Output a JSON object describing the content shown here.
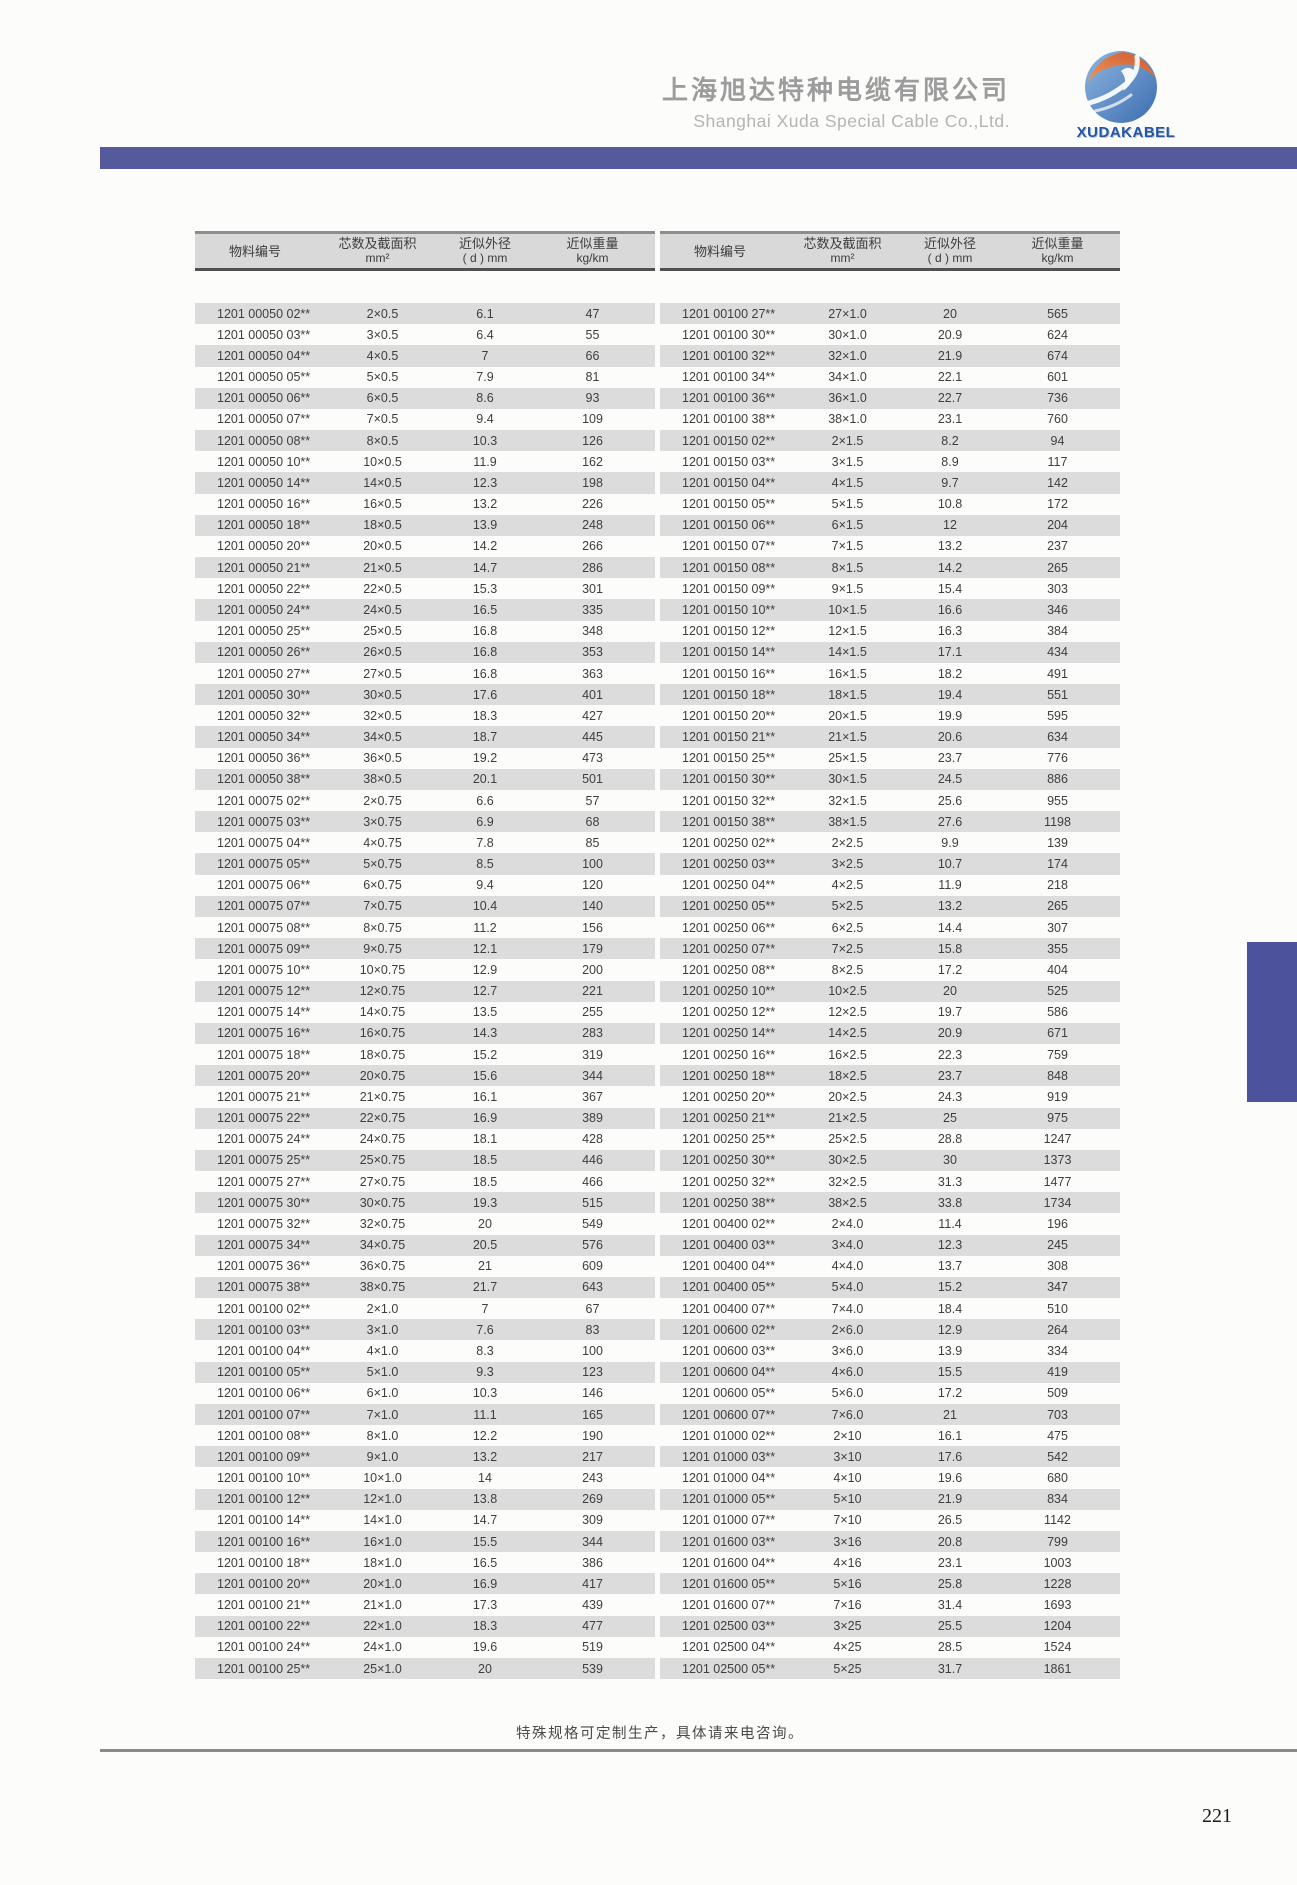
{
  "header": {
    "company_cn": "上海旭达特种电缆有限公司",
    "company_en": "Shanghai Xuda Special Cable Co.,Ltd.",
    "logo_text": "XUDAKABEL"
  },
  "colors": {
    "accent_bar": "#565a9d",
    "side_tab": "#4d529c",
    "logo_blue": "#2456a4",
    "row_stripe": "#dcdcdc",
    "header_bg": "#d9d9d9"
  },
  "columns": [
    {
      "line1": "物料编号",
      "line2": ""
    },
    {
      "line1": "芯数及截面积",
      "line2": "mm²"
    },
    {
      "line1": "近似外径",
      "line2": "( d ) mm"
    },
    {
      "line1": "近似重量",
      "line2": "kg/km"
    }
  ],
  "left_table": {
    "rows": [
      [
        "1201 00050 02**",
        "2×0.5",
        "6.1",
        "47"
      ],
      [
        "1201 00050 03**",
        "3×0.5",
        "6.4",
        "55"
      ],
      [
        "1201 00050 04**",
        "4×0.5",
        "7",
        "66"
      ],
      [
        "1201 00050 05**",
        "5×0.5",
        "7.9",
        "81"
      ],
      [
        "1201 00050 06**",
        "6×0.5",
        "8.6",
        "93"
      ],
      [
        "1201 00050 07**",
        "7×0.5",
        "9.4",
        "109"
      ],
      [
        "1201 00050 08**",
        "8×0.5",
        "10.3",
        "126"
      ],
      [
        "1201 00050 10**",
        "10×0.5",
        "11.9",
        "162"
      ],
      [
        "1201 00050 14**",
        "14×0.5",
        "12.3",
        "198"
      ],
      [
        "1201 00050 16**",
        "16×0.5",
        "13.2",
        "226"
      ],
      [
        "1201 00050 18**",
        "18×0.5",
        "13.9",
        "248"
      ],
      [
        "1201 00050 20**",
        "20×0.5",
        "14.2",
        "266"
      ],
      [
        "1201 00050 21**",
        "21×0.5",
        "14.7",
        "286"
      ],
      [
        "1201 00050 22**",
        "22×0.5",
        "15.3",
        "301"
      ],
      [
        "1201 00050 24**",
        "24×0.5",
        "16.5",
        "335"
      ],
      [
        "1201 00050 25**",
        "25×0.5",
        "16.8",
        "348"
      ],
      [
        "1201 00050 26**",
        "26×0.5",
        "16.8",
        "353"
      ],
      [
        "1201 00050 27**",
        "27×0.5",
        "16.8",
        "363"
      ],
      [
        "1201 00050 30**",
        "30×0.5",
        "17.6",
        "401"
      ],
      [
        "1201 00050 32**",
        "32×0.5",
        "18.3",
        "427"
      ],
      [
        "1201 00050 34**",
        "34×0.5",
        "18.7",
        "445"
      ],
      [
        "1201 00050 36**",
        "36×0.5",
        "19.2",
        "473"
      ],
      [
        "1201 00050 38**",
        "38×0.5",
        "20.1",
        "501"
      ],
      [
        "1201 00075 02**",
        "2×0.75",
        "6.6",
        "57"
      ],
      [
        "1201 00075 03**",
        "3×0.75",
        "6.9",
        "68"
      ],
      [
        "1201 00075 04**",
        "4×0.75",
        "7.8",
        "85"
      ],
      [
        "1201 00075 05**",
        "5×0.75",
        "8.5",
        "100"
      ],
      [
        "1201 00075 06**",
        "6×0.75",
        "9.4",
        "120"
      ],
      [
        "1201 00075 07**",
        "7×0.75",
        "10.4",
        "140"
      ],
      [
        "1201 00075 08**",
        "8×0.75",
        "11.2",
        "156"
      ],
      [
        "1201 00075 09**",
        "9×0.75",
        "12.1",
        "179"
      ],
      [
        "1201 00075 10**",
        "10×0.75",
        "12.9",
        "200"
      ],
      [
        "1201 00075 12**",
        "12×0.75",
        "12.7",
        "221"
      ],
      [
        "1201 00075 14**",
        "14×0.75",
        "13.5",
        "255"
      ],
      [
        "1201 00075 16**",
        "16×0.75",
        "14.3",
        "283"
      ],
      [
        "1201 00075 18**",
        "18×0.75",
        "15.2",
        "319"
      ],
      [
        "1201 00075 20**",
        "20×0.75",
        "15.6",
        "344"
      ],
      [
        "1201 00075 21**",
        "21×0.75",
        "16.1",
        "367"
      ],
      [
        "1201 00075 22**",
        "22×0.75",
        "16.9",
        "389"
      ],
      [
        "1201 00075 24**",
        "24×0.75",
        "18.1",
        "428"
      ],
      [
        "1201 00075 25**",
        "25×0.75",
        "18.5",
        "446"
      ],
      [
        "1201 00075 27**",
        "27×0.75",
        "18.5",
        "466"
      ],
      [
        "1201 00075 30**",
        "30×0.75",
        "19.3",
        "515"
      ],
      [
        "1201 00075 32**",
        "32×0.75",
        "20",
        "549"
      ],
      [
        "1201 00075 34**",
        "34×0.75",
        "20.5",
        "576"
      ],
      [
        "1201 00075 36**",
        "36×0.75",
        "21",
        "609"
      ],
      [
        "1201 00075 38**",
        "38×0.75",
        "21.7",
        "643"
      ],
      [
        "1201 00100 02**",
        "2×1.0",
        "7",
        "67"
      ],
      [
        "1201 00100 03**",
        "3×1.0",
        "7.6",
        "83"
      ],
      [
        "1201 00100 04**",
        "4×1.0",
        "8.3",
        "100"
      ],
      [
        "1201 00100 05**",
        "5×1.0",
        "9.3",
        "123"
      ],
      [
        "1201 00100 06**",
        "6×1.0",
        "10.3",
        "146"
      ],
      [
        "1201 00100 07**",
        "7×1.0",
        "11.1",
        "165"
      ],
      [
        "1201 00100 08**",
        "8×1.0",
        "12.2",
        "190"
      ],
      [
        "1201 00100 09**",
        "9×1.0",
        "13.2",
        "217"
      ],
      [
        "1201 00100 10**",
        "10×1.0",
        "14",
        "243"
      ],
      [
        "1201 00100 12**",
        "12×1.0",
        "13.8",
        "269"
      ],
      [
        "1201 00100 14**",
        "14×1.0",
        "14.7",
        "309"
      ],
      [
        "1201 00100 16**",
        "16×1.0",
        "15.5",
        "344"
      ],
      [
        "1201 00100 18**",
        "18×1.0",
        "16.5",
        "386"
      ],
      [
        "1201 00100 20**",
        "20×1.0",
        "16.9",
        "417"
      ],
      [
        "1201 00100 21**",
        "21×1.0",
        "17.3",
        "439"
      ],
      [
        "1201 00100 22**",
        "22×1.0",
        "18.3",
        "477"
      ],
      [
        "1201 00100 24**",
        "24×1.0",
        "19.6",
        "519"
      ],
      [
        "1201 00100 25**",
        "25×1.0",
        "20",
        "539"
      ]
    ]
  },
  "right_table": {
    "rows": [
      [
        "1201 00100 27**",
        "27×1.0",
        "20",
        "565"
      ],
      [
        "1201 00100 30**",
        "30×1.0",
        "20.9",
        "624"
      ],
      [
        "1201 00100 32**",
        "32×1.0",
        "21.9",
        "674"
      ],
      [
        "1201 00100 34**",
        "34×1.0",
        "22.1",
        "601"
      ],
      [
        "1201 00100 36**",
        "36×1.0",
        "22.7",
        "736"
      ],
      [
        "1201 00100 38**",
        "38×1.0",
        "23.1",
        "760"
      ],
      [
        "1201 00150 02**",
        "2×1.5",
        "8.2",
        "94"
      ],
      [
        "1201 00150 03**",
        "3×1.5",
        "8.9",
        "117"
      ],
      [
        "1201 00150 04**",
        "4×1.5",
        "9.7",
        "142"
      ],
      [
        "1201 00150 05**",
        "5×1.5",
        "10.8",
        "172"
      ],
      [
        "1201 00150 06**",
        "6×1.5",
        "12",
        "204"
      ],
      [
        "1201 00150 07**",
        "7×1.5",
        "13.2",
        "237"
      ],
      [
        "1201 00150 08**",
        "8×1.5",
        "14.2",
        "265"
      ],
      [
        "1201 00150 09**",
        "9×1.5",
        "15.4",
        "303"
      ],
      [
        "1201 00150 10**",
        "10×1.5",
        "16.6",
        "346"
      ],
      [
        "1201 00150 12**",
        "12×1.5",
        "16.3",
        "384"
      ],
      [
        "1201 00150 14**",
        "14×1.5",
        "17.1",
        "434"
      ],
      [
        "1201 00150 16**",
        "16×1.5",
        "18.2",
        "491"
      ],
      [
        "1201 00150 18**",
        "18×1.5",
        "19.4",
        "551"
      ],
      [
        "1201 00150 20**",
        "20×1.5",
        "19.9",
        "595"
      ],
      [
        "1201 00150 21**",
        "21×1.5",
        "20.6",
        "634"
      ],
      [
        "1201 00150 25**",
        "25×1.5",
        "23.7",
        "776"
      ],
      [
        "1201 00150 30**",
        "30×1.5",
        "24.5",
        "886"
      ],
      [
        "1201 00150 32**",
        "32×1.5",
        "25.6",
        "955"
      ],
      [
        "1201 00150 38**",
        "38×1.5",
        "27.6",
        "1198"
      ],
      [
        "1201 00250 02**",
        "2×2.5",
        "9.9",
        "139"
      ],
      [
        "1201 00250 03**",
        "3×2.5",
        "10.7",
        "174"
      ],
      [
        "1201 00250 04**",
        "4×2.5",
        "11.9",
        "218"
      ],
      [
        "1201 00250 05**",
        "5×2.5",
        "13.2",
        "265"
      ],
      [
        "1201 00250 06**",
        "6×2.5",
        "14.4",
        "307"
      ],
      [
        "1201 00250 07**",
        "7×2.5",
        "15.8",
        "355"
      ],
      [
        "1201 00250 08**",
        "8×2.5",
        "17.2",
        "404"
      ],
      [
        "1201 00250 10**",
        "10×2.5",
        "20",
        "525"
      ],
      [
        "1201 00250 12**",
        "12×2.5",
        "19.7",
        "586"
      ],
      [
        "1201 00250 14**",
        "14×2.5",
        "20.9",
        "671"
      ],
      [
        "1201 00250 16**",
        "16×2.5",
        "22.3",
        "759"
      ],
      [
        "1201 00250 18**",
        "18×2.5",
        "23.7",
        "848"
      ],
      [
        "1201 00250 20**",
        "20×2.5",
        "24.3",
        "919"
      ],
      [
        "1201 00250 21**",
        "21×2.5",
        "25",
        "975"
      ],
      [
        "1201 00250 25**",
        "25×2.5",
        "28.8",
        "1247"
      ],
      [
        "1201 00250 30**",
        "30×2.5",
        "30",
        "1373"
      ],
      [
        "1201 00250 32**",
        "32×2.5",
        "31.3",
        "1477"
      ],
      [
        "1201 00250 38**",
        "38×2.5",
        "33.8",
        "1734"
      ],
      [
        "1201 00400 02**",
        "2×4.0",
        "11.4",
        "196"
      ],
      [
        "1201 00400 03**",
        "3×4.0",
        "12.3",
        "245"
      ],
      [
        "1201 00400 04**",
        "4×4.0",
        "13.7",
        "308"
      ],
      [
        "1201 00400 05**",
        "5×4.0",
        "15.2",
        "347"
      ],
      [
        "1201 00400 07**",
        "7×4.0",
        "18.4",
        "510"
      ],
      [
        "1201 00600 02**",
        "2×6.0",
        "12.9",
        "264"
      ],
      [
        "1201 00600 03**",
        "3×6.0",
        "13.9",
        "334"
      ],
      [
        "1201 00600 04**",
        "4×6.0",
        "15.5",
        "419"
      ],
      [
        "1201 00600 05**",
        "5×6.0",
        "17.2",
        "509"
      ],
      [
        "1201 00600 07**",
        "7×6.0",
        "21",
        "703"
      ],
      [
        "1201 01000 02**",
        "2×10",
        "16.1",
        "475"
      ],
      [
        "1201 01000 03**",
        "3×10",
        "17.6",
        "542"
      ],
      [
        "1201 01000 04**",
        "4×10",
        "19.6",
        "680"
      ],
      [
        "1201 01000 05**",
        "5×10",
        "21.9",
        "834"
      ],
      [
        "1201 01000 07**",
        "7×10",
        "26.5",
        "1142"
      ],
      [
        "1201 01600 03**",
        "3×16",
        "20.8",
        "799"
      ],
      [
        "1201 01600 04**",
        "4×16",
        "23.1",
        "1003"
      ],
      [
        "1201 01600 05**",
        "5×16",
        "25.8",
        "1228"
      ],
      [
        "1201 01600 07**",
        "7×16",
        "31.4",
        "1693"
      ],
      [
        "1201 02500 03**",
        "3×25",
        "25.5",
        "1204"
      ],
      [
        "1201 02500 04**",
        "4×25",
        "28.5",
        "1524"
      ],
      [
        "1201 02500 05**",
        "5×25",
        "31.7",
        "1861"
      ]
    ]
  },
  "footer": {
    "note": "特殊规格可定制生产，具体请来电咨询。",
    "page_number": "221"
  }
}
